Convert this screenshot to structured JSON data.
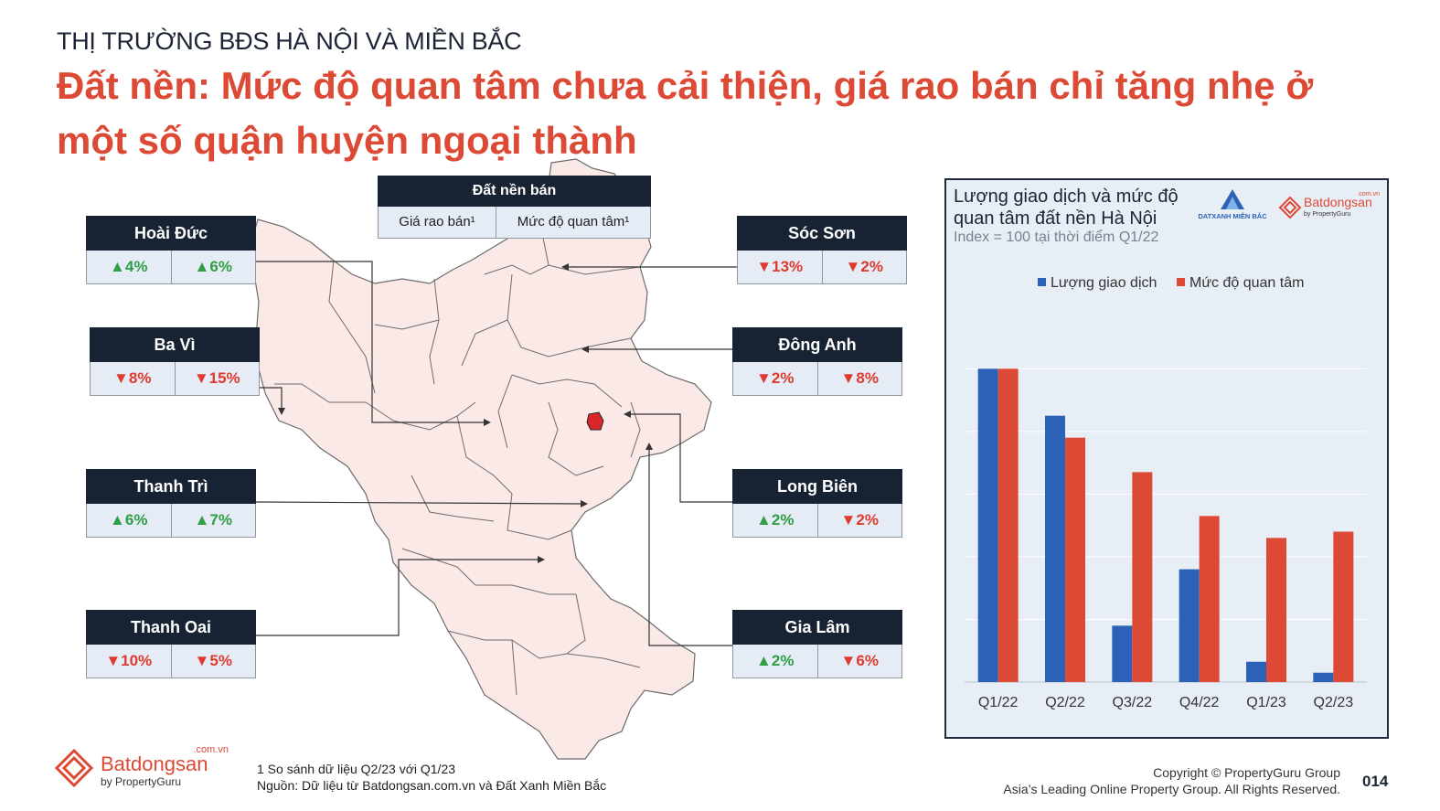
{
  "header": {
    "kicker": "THỊ TRƯỜNG BĐS HÀ NỘI VÀ MIỀN BẮC",
    "headline": "Đất nền: Mức độ quan tâm chưa cải thiện, giá rao bán chỉ tăng nhẹ ở một số quận huyện ngoại thành"
  },
  "legend_box": {
    "title": "Đất nền bán",
    "col1": "Giá rao bán¹",
    "col2": "Mức độ quan tâm¹"
  },
  "districts": [
    {
      "name": "Hoài Đức",
      "price": "▲4%",
      "price_dir": "up",
      "interest": "▲6%",
      "interest_dir": "up"
    },
    {
      "name": "Ba Vì",
      "price": "▼8%",
      "price_dir": "down",
      "interest": "▼15%",
      "interest_dir": "down"
    },
    {
      "name": "Thanh Trì",
      "price": "▲6%",
      "price_dir": "up",
      "interest": "▲7%",
      "interest_dir": "up"
    },
    {
      "name": "Thanh Oai",
      "price": "▼10%",
      "price_dir": "down",
      "interest": "▼5%",
      "interest_dir": "down"
    },
    {
      "name": "Sóc Sơn",
      "price": "▼13%",
      "price_dir": "down",
      "interest": "▼2%",
      "interest_dir": "down"
    },
    {
      "name": "Đông Anh",
      "price": "▼2%",
      "price_dir": "down",
      "interest": "▼8%",
      "interest_dir": "down"
    },
    {
      "name": "Long Biên",
      "price": "▲2%",
      "price_dir": "up",
      "interest": "▼2%",
      "interest_dir": "down"
    },
    {
      "name": "Gia Lâm",
      "price": "▲2%",
      "price_dir": "up",
      "interest": "▼6%",
      "interest_dir": "down"
    }
  ],
  "chart_panel": {
    "title": "Lượng giao dịch và mức độ quan tâm đất nền Hà Nội",
    "subtitle": "Index = 100 tại thời điểm Q1/22",
    "logo_dx_text": "DATXANH MIỀN BẮC",
    "logo_bds_text": "Batdongsan",
    "logo_bds_domain": ".com.vn",
    "logo_bds_sub": "by PropertyGuru"
  },
  "chart_data": {
    "type": "bar",
    "categories": [
      "Q1/22",
      "Q2/22",
      "Q3/22",
      "Q4/22",
      "Q1/23",
      "Q2/23"
    ],
    "series": [
      {
        "name": "Lượng giao dịch",
        "color": "#2b62b8",
        "values": [
          100,
          85,
          18,
          36,
          6.5,
          3
        ]
      },
      {
        "name": "Mức độ quan tâm",
        "color": "#dc4a36",
        "values": [
          100,
          78,
          67,
          53,
          46,
          48
        ]
      }
    ],
    "ylim": [
      0,
      110
    ],
    "grid": true,
    "legend": "top"
  },
  "footer": {
    "note1": "1 So sánh dữ liệu Q2/23 với Q1/23",
    "note2": "Nguồn: Dữ liệu từ Batdongsan.com.vn và Đất Xanh Miền Bắc",
    "copyright1": "Copyright © PropertyGuru Group",
    "copyright2": "Asia’s Leading Online Property Group. All Rights Reserved.",
    "page_number": "014",
    "logo_text": "Batdongsan",
    "logo_domain": ".com.vn",
    "logo_sub": "by PropertyGuru"
  },
  "colors": {
    "accent": "#dc4a36",
    "navy": "#172233",
    "map_fill": "#fbe9e8",
    "highlight": "#d9262b"
  }
}
